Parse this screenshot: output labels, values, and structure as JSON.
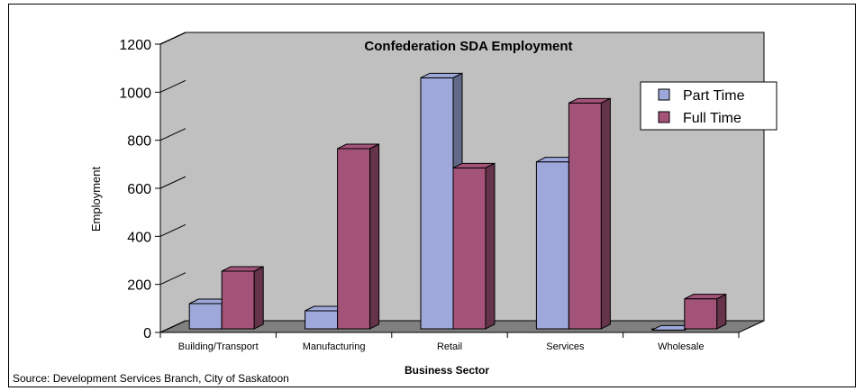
{
  "chart_data": {
    "type": "bar",
    "title": "Confederation SDA Employment",
    "xlabel": "Business Sector",
    "ylabel": "Employment",
    "categories": [
      "Building/Transport",
      "Manufacturing",
      "Retail",
      "Services",
      "Wholesale"
    ],
    "series": [
      {
        "name": "Part Time",
        "values": [
          120,
          90,
          1060,
          710,
          10
        ],
        "color": "#9EA8DA"
      },
      {
        "name": "Full Time",
        "values": [
          255,
          765,
          685,
          955,
          140
        ],
        "color": "#A35378"
      }
    ],
    "ylim": [
      0,
      1200
    ],
    "yticks": [
      "0",
      "200",
      "400",
      "600",
      "800",
      "1000",
      "1200"
    ],
    "grid": false,
    "legend": "top-right",
    "wall_color": "#C0C0C0",
    "floor_color": "#808080"
  },
  "source": "Source: Development Services Branch, City of Saskatoon"
}
